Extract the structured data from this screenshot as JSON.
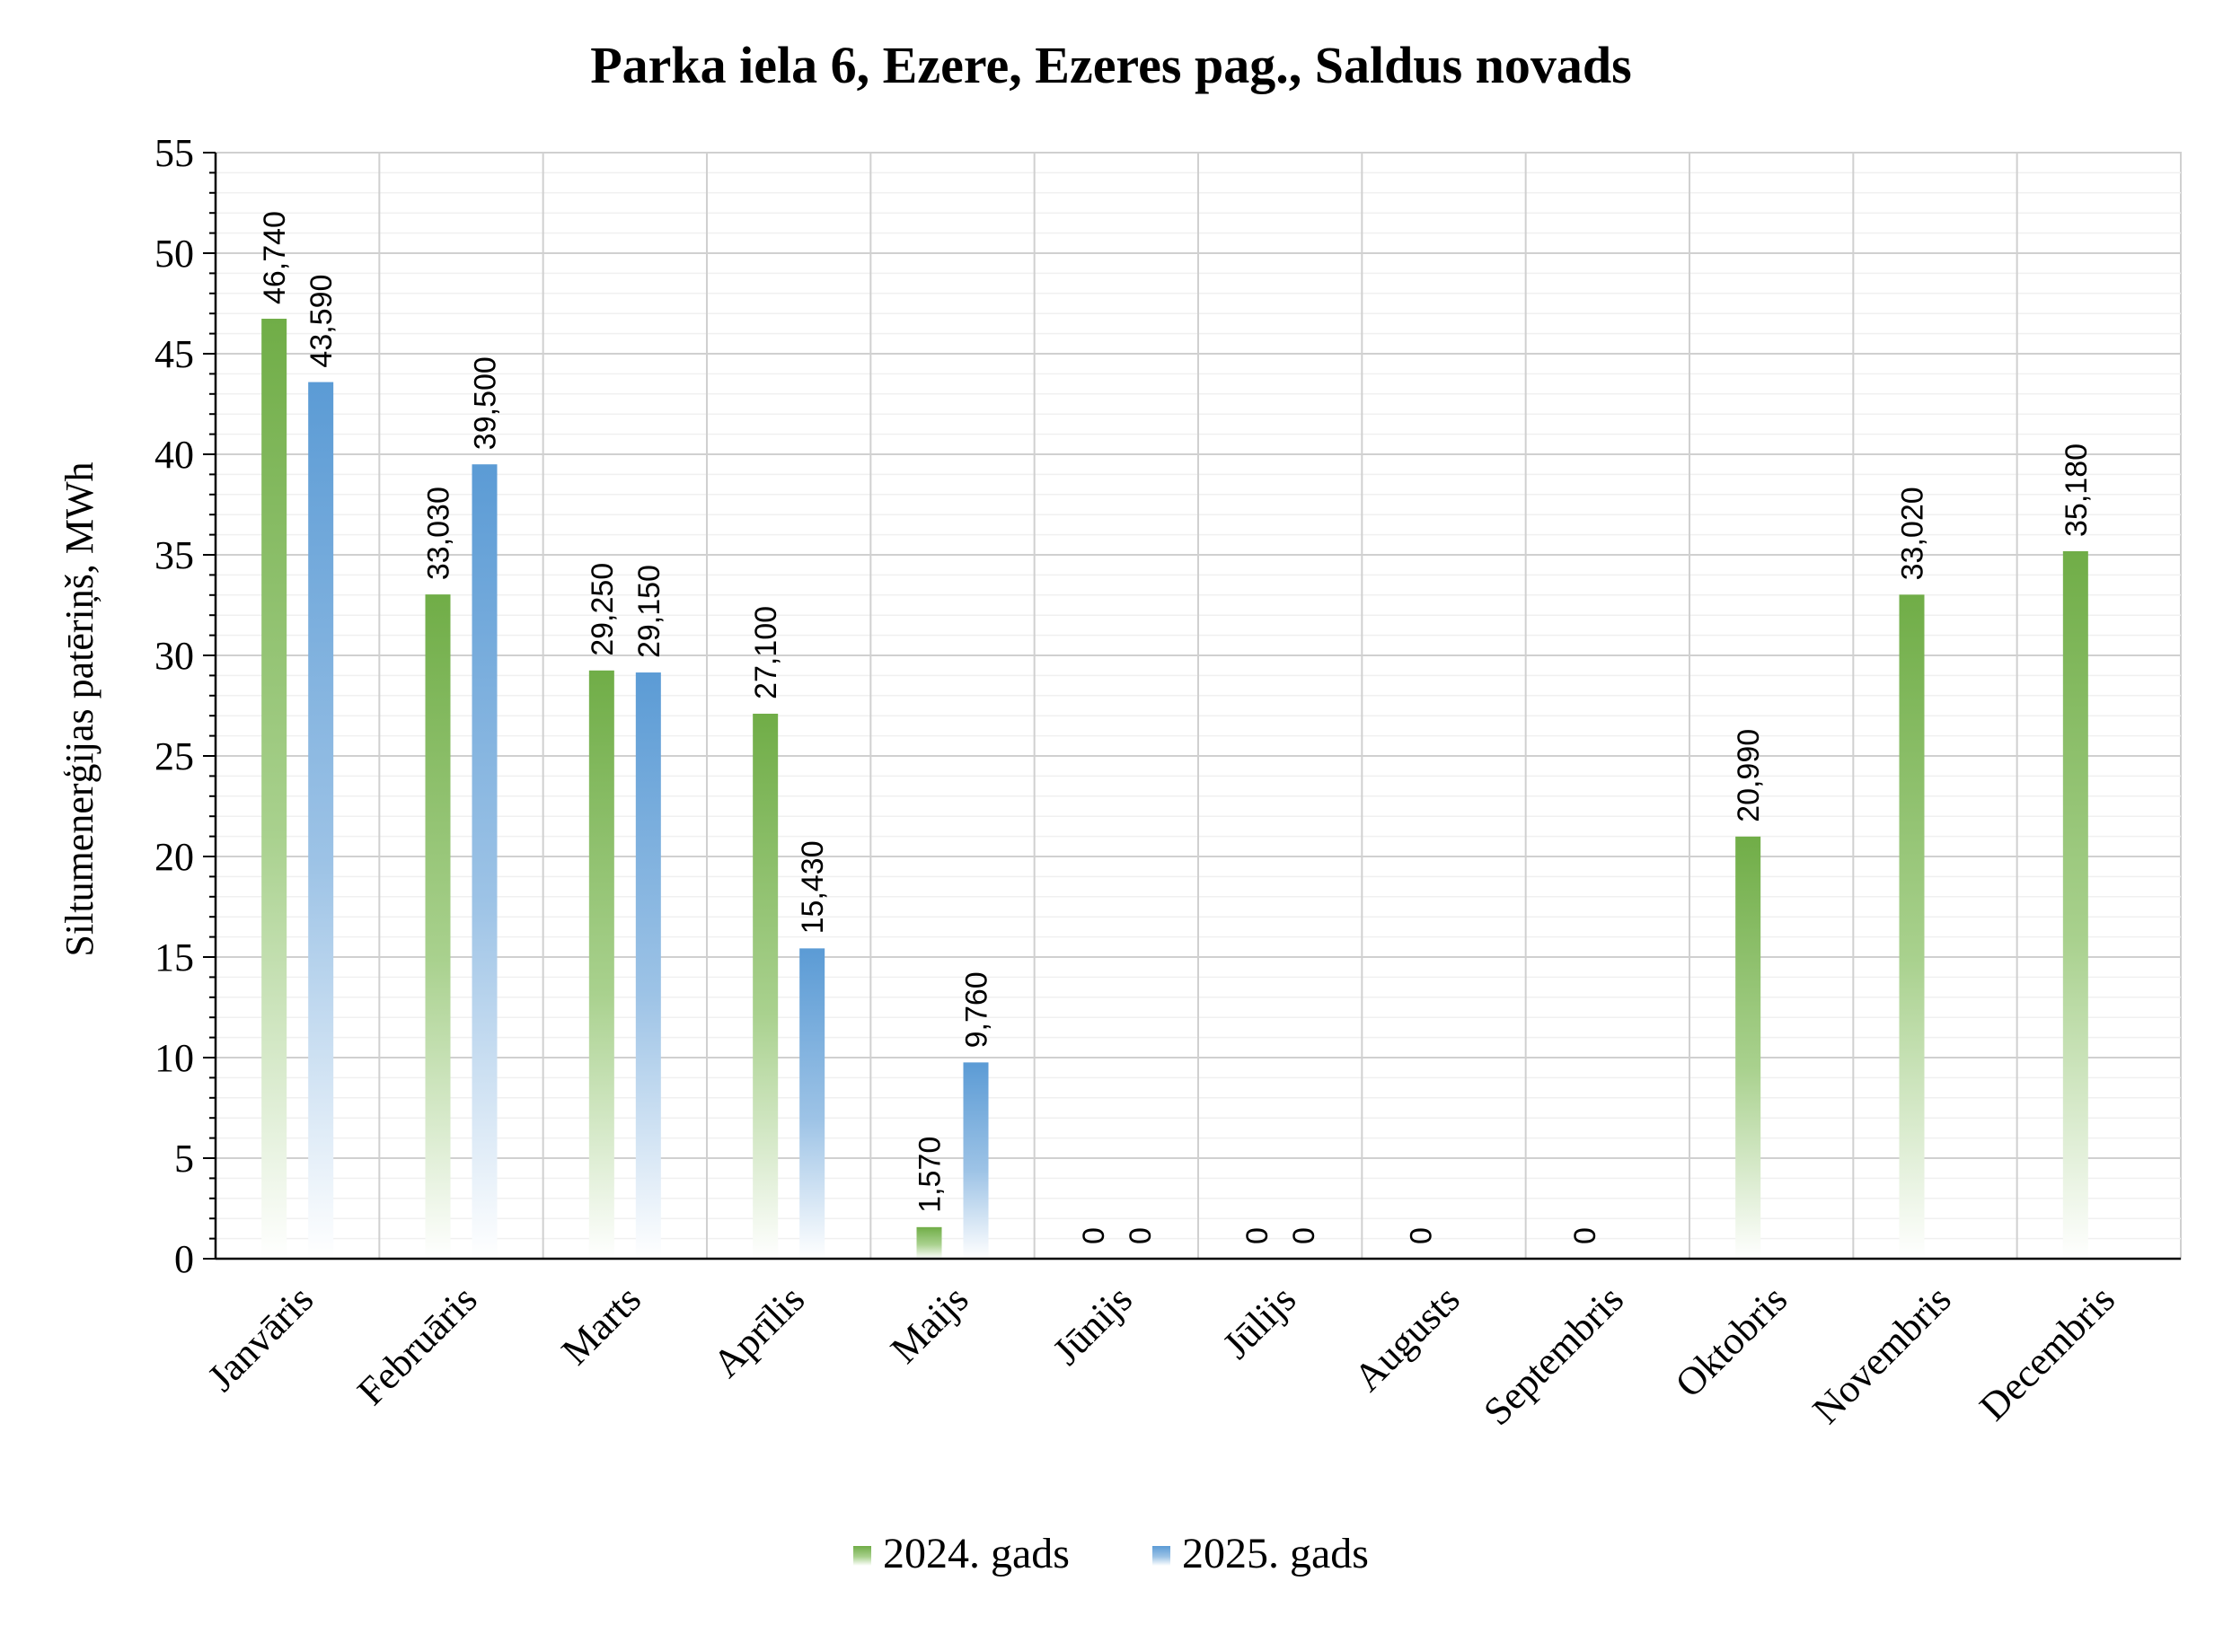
{
  "chart_data": {
    "type": "bar",
    "title": "Parka iela 6, Ezere, Ezeres pag., Saldus novads",
    "xlabel": "",
    "ylabel": "Siltumenerģijas patēriņš, MWh",
    "ylim": [
      0,
      55
    ],
    "yticks": [
      0,
      5,
      10,
      15,
      20,
      25,
      30,
      35,
      40,
      45,
      50,
      55
    ],
    "grid": true,
    "legend_position": "bottom",
    "categories": [
      "Janvāris",
      "Februāris",
      "Marts",
      "Aprīlis",
      "Maijs",
      "Jūnijs",
      "Jūlijs",
      "Augusts",
      "Septembris",
      "Oktobris",
      "Novembris",
      "Decembris"
    ],
    "series": [
      {
        "name": "2024. gads",
        "color": "#70ad47",
        "values": [
          46.74,
          33.03,
          29.25,
          27.1,
          1.57,
          0,
          0,
          0,
          0,
          20.99,
          33.02,
          35.18
        ],
        "labels": [
          "46,740",
          "33,030",
          "29,250",
          "27,100",
          "1,570",
          "0",
          "0",
          "0",
          "0",
          "20,990",
          "33,020",
          "35,180"
        ]
      },
      {
        "name": "2025. gads",
        "color": "#5b9bd5",
        "values": [
          43.59,
          39.5,
          29.15,
          15.43,
          9.76,
          0,
          0,
          null,
          null,
          null,
          null,
          null
        ],
        "labels": [
          "43,590",
          "39,500",
          "29,150",
          "15,430",
          "9,760",
          "0",
          "0",
          "",
          "",
          "",
          "",
          ""
        ]
      }
    ]
  }
}
